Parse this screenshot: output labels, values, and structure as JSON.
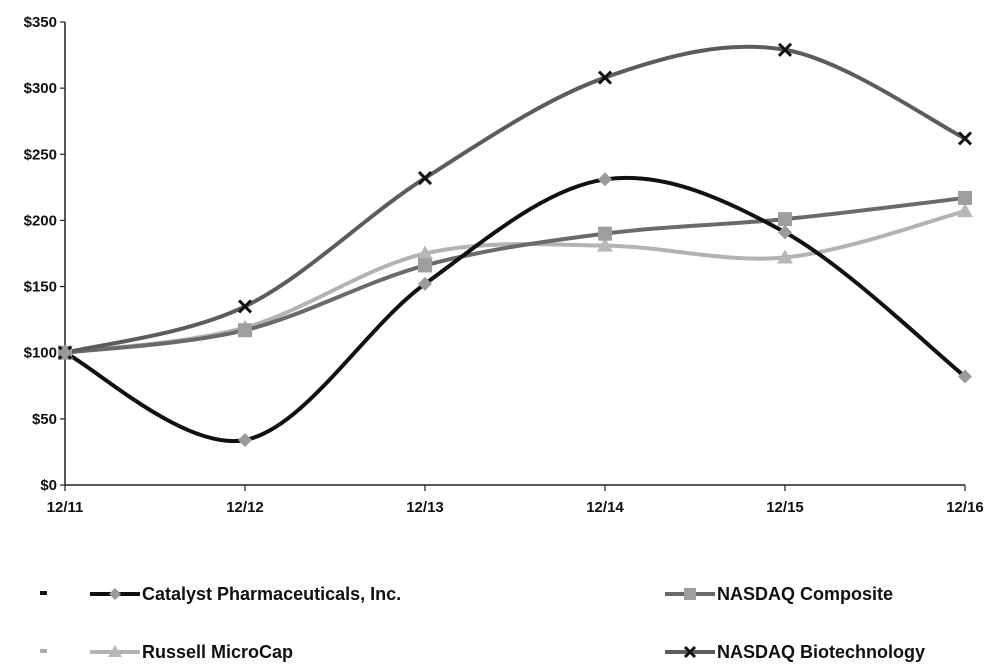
{
  "chart_data": {
    "type": "line",
    "x": [
      "12/11",
      "12/12",
      "12/13",
      "12/14",
      "12/15",
      "12/16"
    ],
    "ylim": [
      0,
      350
    ],
    "yticks": [
      0,
      50,
      100,
      150,
      200,
      250,
      300,
      350
    ],
    "ytick_labels": [
      "$0",
      "$50",
      "$100",
      "$150",
      "$200",
      "$250",
      "$300",
      "$350"
    ],
    "grid": false,
    "legend_position": "bottom",
    "series": [
      {
        "name": "Catalyst Pharmaceuticals, Inc.",
        "values": [
          100,
          34,
          152,
          231,
          191,
          82
        ],
        "color": "#111111",
        "marker_color": "#9a9a9a",
        "marker": "diamond"
      },
      {
        "name": "NASDAQ Composite",
        "values": [
          100,
          117,
          166,
          190,
          201,
          217
        ],
        "color": "#6a6a6a",
        "marker_color": "#9e9e9e",
        "marker": "square"
      },
      {
        "name": "Russell MicroCap",
        "values": [
          100,
          119,
          175,
          181,
          172,
          207
        ],
        "color": "#b3b3b3",
        "marker_color": "#b8b8b8",
        "marker": "triangle"
      },
      {
        "name": "NASDAQ Biotechnology",
        "values": [
          100,
          135,
          232,
          308,
          329,
          262
        ],
        "color": "#5c5c5c",
        "marker_color": "#111111",
        "marker": "x"
      }
    ]
  }
}
